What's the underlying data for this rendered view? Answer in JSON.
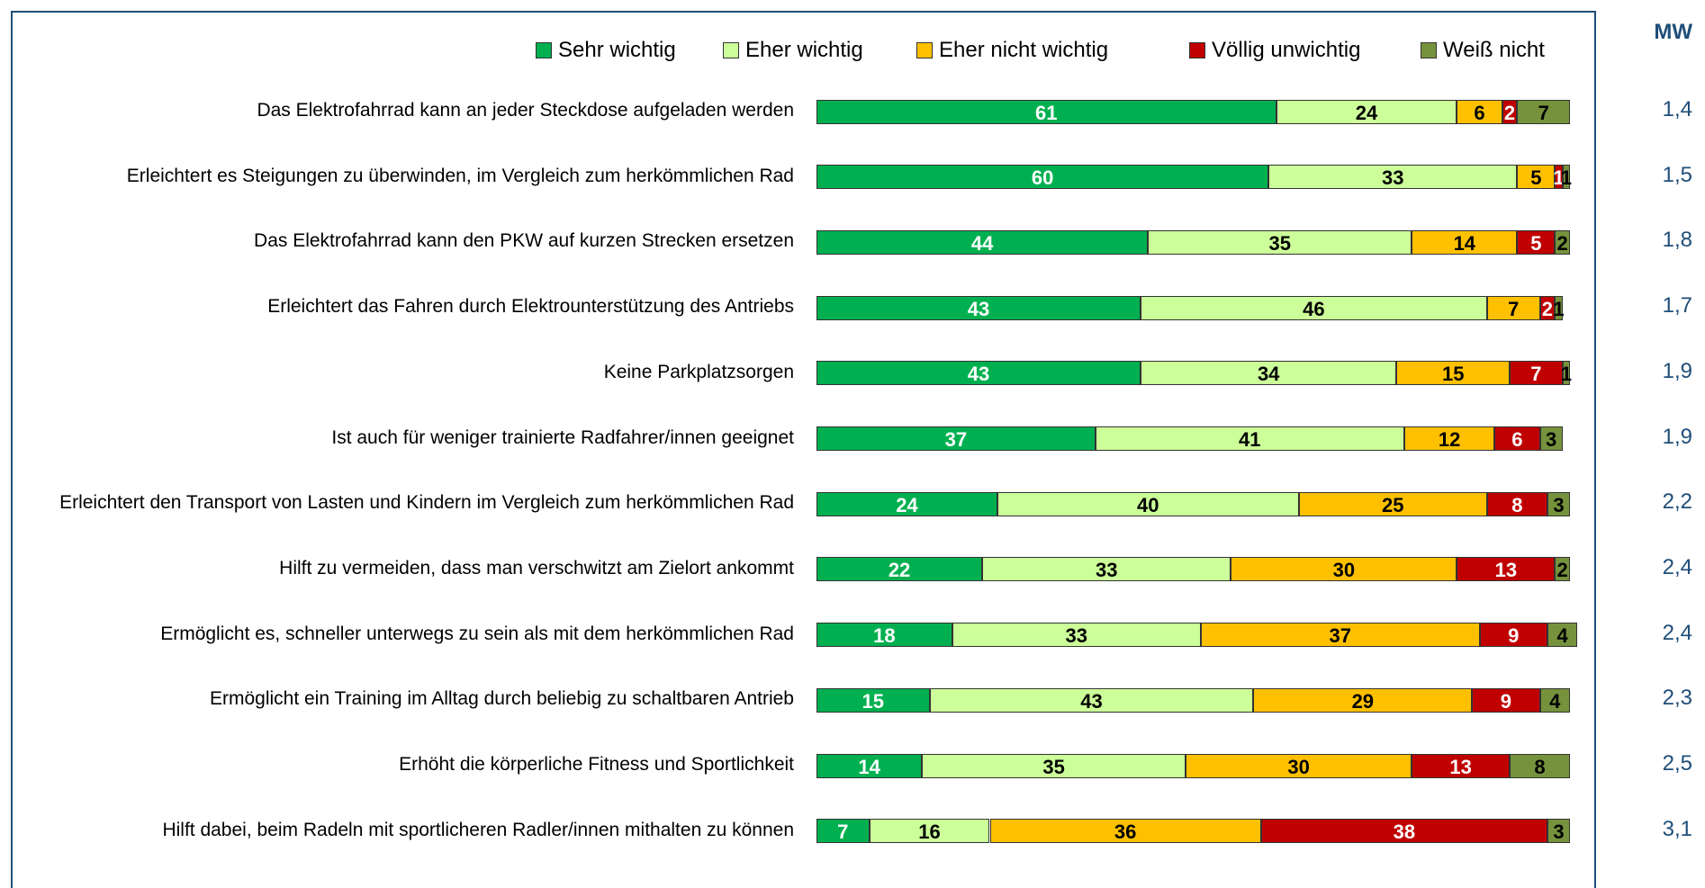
{
  "chart_data": {
    "type": "stacked_bar_horizontal",
    "categories": [
      "Das Elektrofahrrad kann an jeder Steckdose aufgeladen werden",
      "Erleichtert es Steigungen zu überwinden, im Vergleich zum herkömmlichen Rad",
      "Das Elektrofahrrad kann den PKW auf kurzen Strecken ersetzen",
      "Erleichtert das Fahren durch Elektrounterstützung des Antriebs",
      "Keine Parkplatzsorgen",
      "Ist auch für weniger trainierte Radfahrer/innen geeignet",
      "Erleichtert den Transport von Lasten und Kindern im Vergleich zum herkömmlichen Rad",
      "Hilft zu vermeiden, dass man verschwitzt am Zielort ankommt",
      "Ermöglicht es, schneller unterwegs zu sein als mit dem herkömmlichen Rad",
      "Ermöglicht ein Training im Alltag durch beliebig zu schaltbaren Antrieb",
      "Erhöht die körperliche Fitness und Sportlichkeit",
      "Hilft dabei, beim Radeln mit sportlicheren Radler/innen mithalten zu können"
    ],
    "series": [
      {
        "name": "Sehr wichtig",
        "color": "#00b050",
        "label_color": "#ffffff",
        "values": [
          61,
          60,
          44,
          43,
          43,
          37,
          24,
          22,
          18,
          15,
          14,
          7
        ]
      },
      {
        "name": "Eher wichtig",
        "color": "#ccff99",
        "label_color": "#000000",
        "values": [
          24,
          33,
          35,
          46,
          34,
          41,
          40,
          33,
          33,
          43,
          35,
          16
        ]
      },
      {
        "name": "Eher nicht wichtig",
        "color": "#ffc000",
        "label_color": "#000000",
        "values": [
          6,
          5,
          14,
          7,
          15,
          12,
          25,
          30,
          37,
          29,
          30,
          36
        ]
      },
      {
        "name": "Völlig unwichtig",
        "color": "#c00000",
        "label_color": "#ffffff",
        "values": [
          2,
          1,
          5,
          2,
          7,
          6,
          8,
          13,
          9,
          9,
          13,
          38
        ]
      },
      {
        "name": "Weiß nicht",
        "color": "#76923c",
        "label_color": "#000000",
        "values": [
          7,
          1,
          2,
          1,
          1,
          3,
          3,
          2,
          4,
          4,
          8,
          3
        ]
      }
    ],
    "xlim": [
      0,
      100
    ],
    "legend": "top",
    "mean_column": {
      "title": "MW",
      "values": [
        "1,4",
        "1,5",
        "1,8",
        "1,7",
        "1,9",
        "1,9",
        "2,2",
        "2,4",
        "2,4",
        "2,3",
        "2,5",
        "3,1"
      ]
    }
  }
}
